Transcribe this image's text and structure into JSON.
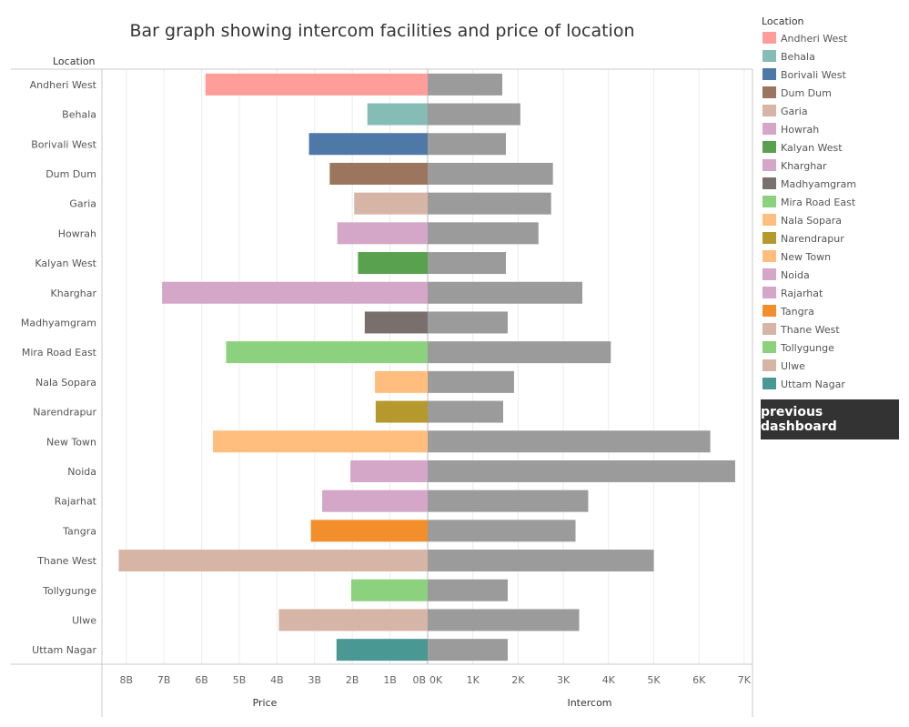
{
  "chart_data": {
    "type": "bar",
    "title": "Bar graph showing intercom facilities and price of location",
    "row_header": "Location",
    "legend_title": "Location",
    "legend_position": "right",
    "categories": [
      "Andheri West",
      "Behala",
      "Borivali West",
      "Dum Dum",
      "Garia",
      "Howrah",
      "Kalyan West",
      "Kharghar",
      "Madhyamgram",
      "Mira Road East",
      "Nala Sopara",
      "Narendrapur",
      "New Town",
      "Noida",
      "Rajarhat",
      "Tangra",
      "Thane West",
      "Tollygunge",
      "Ulwe",
      "Uttam Nagar"
    ],
    "colors": [
      "#ff9d9a",
      "#86bcb6",
      "#4e79a7",
      "#9c755f",
      "#d7b5a6",
      "#d4a6c8",
      "#59a14f",
      "#d4a6c8",
      "#79706e",
      "#8cd17d",
      "#ffbe7d",
      "#b6992d",
      "#ffbe7d",
      "#d4a6c8",
      "#d4a6c8",
      "#f28e2b",
      "#d7b5a6",
      "#8cd17d",
      "#d7b5a6",
      "#499894"
    ],
    "series": [
      {
        "name": "Price",
        "xlabel": "Price",
        "xlim": [
          0,
          8500000000
        ],
        "ticks": [
          0,
          1000000000,
          2000000000,
          3000000000,
          4000000000,
          5000000000,
          6000000000,
          7000000000,
          8000000000
        ],
        "tick_labels": [
          "0B",
          "1B",
          "2B",
          "3B",
          "4B",
          "5B",
          "6B",
          "7B",
          "8B"
        ],
        "values": [
          5900000000,
          1600000000,
          3150000000,
          2600000000,
          1950000000,
          2400000000,
          1850000000,
          7050000000,
          1670000000,
          5350000000,
          1400000000,
          1380000000,
          5700000000,
          2050000000,
          2800000000,
          3100000000,
          8200000000,
          2030000000,
          3950000000,
          2420000000
        ]
      },
      {
        "name": "Intercom",
        "xlabel": "Intercom",
        "color": "#9b9b9b",
        "xlim": [
          0,
          7200
        ],
        "ticks": [
          0,
          1000,
          2000,
          3000,
          4000,
          5000,
          6000,
          7000
        ],
        "tick_labels": [
          "0K",
          "1K",
          "2K",
          "3K",
          "4K",
          "5K",
          "6K",
          "7K"
        ],
        "values": [
          1650,
          2050,
          1730,
          2770,
          2730,
          2450,
          1730,
          3420,
          1770,
          4050,
          1910,
          1670,
          6250,
          6800,
          3550,
          3270,
          5000,
          1770,
          3350,
          1770
        ]
      }
    ],
    "grid": true
  },
  "button": {
    "label": "previous dashboard"
  }
}
